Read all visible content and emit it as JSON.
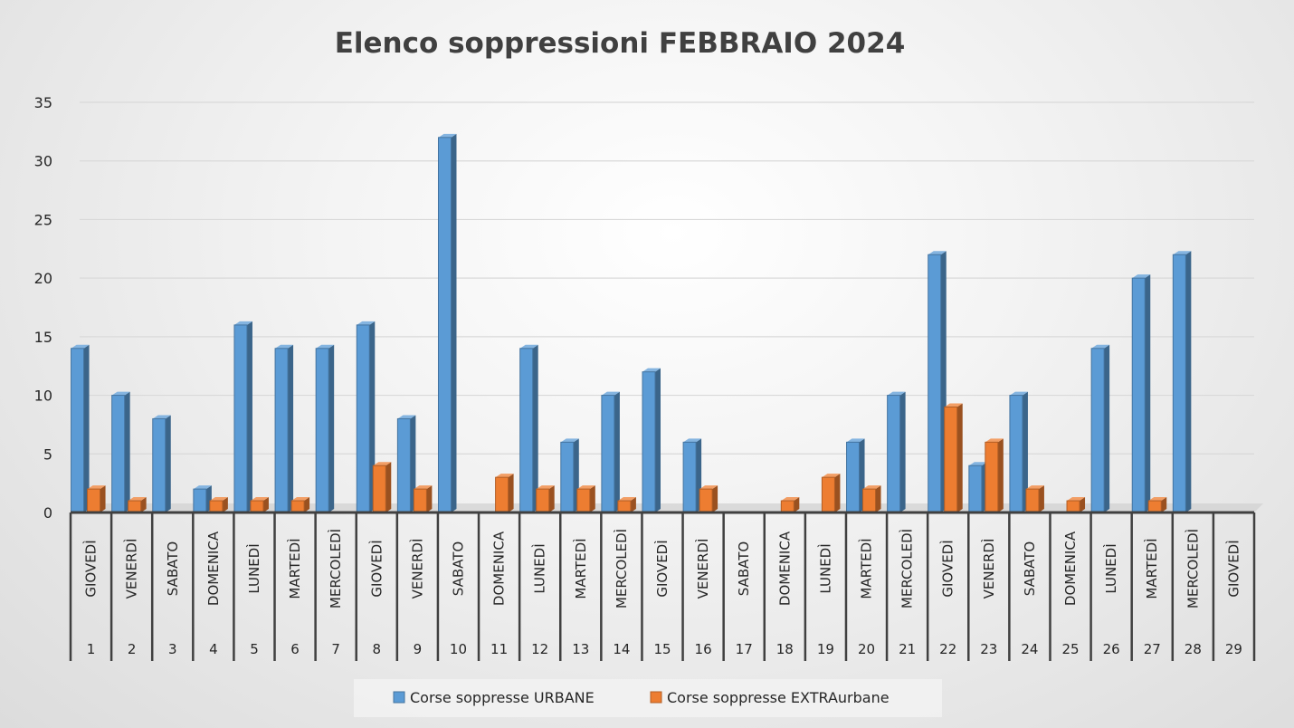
{
  "chart_data": {
    "type": "bar",
    "title": "Elenco soppressioni FEBBRAIO 2024",
    "xlabel": "",
    "ylabel": "",
    "ylim": [
      0,
      35
    ],
    "yticks": [
      0,
      5,
      10,
      15,
      20,
      25,
      30,
      35
    ],
    "grid": true,
    "legend_position": "bottom",
    "days": [
      "1",
      "2",
      "3",
      "4",
      "5",
      "6",
      "7",
      "8",
      "9",
      "10",
      "11",
      "12",
      "13",
      "14",
      "15",
      "16",
      "17",
      "18",
      "19",
      "20",
      "21",
      "22",
      "23",
      "24",
      "25",
      "26",
      "27",
      "28",
      "29"
    ],
    "weekdays": [
      "GIOVEDÌ",
      "VENERDÌ",
      "SABATO",
      "DOMENICA",
      "LUNEDÌ",
      "MARTEDÌ",
      "MERCOLEDÌ",
      "GIOVEDÌ",
      "VENERDÌ",
      "SABATO",
      "DOMENICA",
      "LUNEDÌ",
      "MARTEDÌ",
      "MERCOLEDÌ",
      "GIOVEDÌ",
      "VENERDÌ",
      "SABATO",
      "DOMENICA",
      "LUNEDÌ",
      "MARTEDÌ",
      "MERCOLEDÌ",
      "GIOVEDÌ",
      "VENERDÌ",
      "SABATO",
      "DOMENICA",
      "LUNEDÌ",
      "MARTEDÌ",
      "MERCOLEDÌ",
      "GIOVEDÌ"
    ],
    "series": [
      {
        "name": "Corse soppresse URBANE",
        "color": "#5b9bd5",
        "values": [
          14,
          10,
          8,
          2,
          16,
          14,
          14,
          16,
          8,
          32,
          0,
          14,
          6,
          10,
          12,
          6,
          0,
          0,
          0,
          6,
          10,
          22,
          4,
          10,
          0,
          14,
          20,
          22,
          0
        ]
      },
      {
        "name": "Corse soppresse EXTRAurbane",
        "color": "#ed7d31",
        "values": [
          2,
          1,
          0,
          1,
          1,
          1,
          0,
          4,
          2,
          0,
          3,
          2,
          2,
          1,
          0,
          2,
          0,
          1,
          3,
          2,
          0,
          9,
          6,
          2,
          1,
          0,
          1,
          0,
          0
        ]
      }
    ]
  }
}
